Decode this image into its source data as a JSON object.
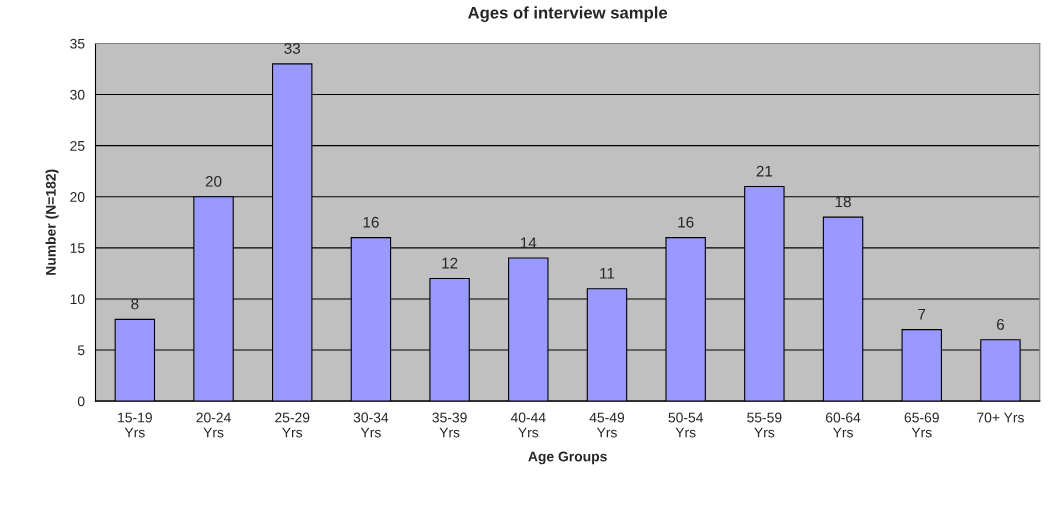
{
  "chart_data": {
    "type": "bar",
    "title": "Ages of interview sample",
    "xlabel": "Age Groups",
    "ylabel": "Number (N=182)",
    "categories": [
      "15-19\nYrs",
      "20-24\nYrs",
      "25-29\nYrs",
      "30-34\nYrs",
      "35-39\nYrs",
      "40-44\nYrs",
      "45-49\nYrs",
      "50-54\nYrs",
      "55-59\nYrs",
      "60-64\nYrs",
      "65-69\nYrs",
      "70+ Yrs"
    ],
    "values": [
      8,
      20,
      33,
      16,
      12,
      14,
      11,
      16,
      21,
      18,
      7,
      6
    ],
    "color": "#9999ff",
    "ylim": [
      0,
      35
    ],
    "yticks": [
      0,
      5,
      10,
      15,
      20,
      25,
      30,
      35
    ],
    "grid": "y",
    "data_labels": true
  }
}
